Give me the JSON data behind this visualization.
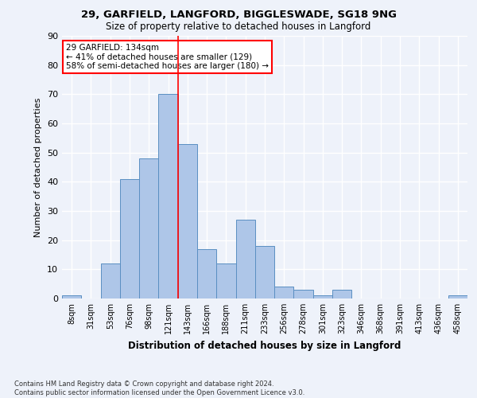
{
  "title1": "29, GARFIELD, LANGFORD, BIGGLESWADE, SG18 9NG",
  "title2": "Size of property relative to detached houses in Langford",
  "xlabel": "Distribution of detached houses by size in Langford",
  "ylabel": "Number of detached properties",
  "footnote": "Contains HM Land Registry data © Crown copyright and database right 2024.\nContains public sector information licensed under the Open Government Licence v3.0.",
  "bar_labels": [
    "8sqm",
    "31sqm",
    "53sqm",
    "76sqm",
    "98sqm",
    "121sqm",
    "143sqm",
    "166sqm",
    "188sqm",
    "211sqm",
    "233sqm",
    "256sqm",
    "278sqm",
    "301sqm",
    "323sqm",
    "346sqm",
    "368sqm",
    "391sqm",
    "413sqm",
    "436sqm",
    "458sqm"
  ],
  "bar_values": [
    1,
    0,
    12,
    41,
    48,
    70,
    53,
    17,
    12,
    27,
    18,
    4,
    3,
    1,
    3,
    0,
    0,
    0,
    0,
    0,
    1
  ],
  "bar_color": "#aec6e8",
  "bar_edge_color": "#5a8fc2",
  "vline_x": 5.5,
  "vline_color": "red",
  "annotation_text": "29 GARFIELD: 134sqm\n← 41% of detached houses are smaller (129)\n58% of semi-detached houses are larger (180) →",
  "bg_color": "#eef2fa",
  "grid_color": "white",
  "ylim": [
    0,
    90
  ],
  "yticks": [
    0,
    10,
    20,
    30,
    40,
    50,
    60,
    70,
    80,
    90
  ]
}
